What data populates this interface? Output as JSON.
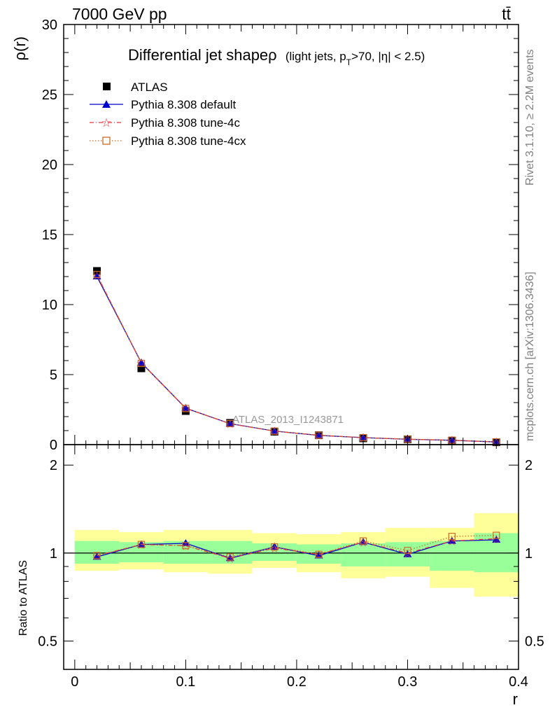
{
  "header": {
    "energy": "7000 GeV pp",
    "process": "tt̄"
  },
  "side_labels": {
    "rivet": "Rivet 3.1.10, ≥ 2.2M events",
    "mcplots": "mcplots.cern.ch [arXiv:1306.3436]"
  },
  "watermark": "ATLAS_2013_I1243871",
  "chart_data": [
    {
      "type": "line",
      "title": "Differential jet shapeρ",
      "title_cuts": "(light jets, p",
      "title_sub": "T",
      "title_cuts2": ">70, |η| < 2.5)",
      "ylabel": "ρ(r)",
      "xlim": [
        -0.01,
        0.4
      ],
      "ylim": [
        0,
        30
      ],
      "yticks": [
        "0",
        "5",
        "10",
        "15",
        "20",
        "25",
        "30"
      ],
      "x": [
        0.02,
        0.06,
        0.1,
        0.14,
        0.18,
        0.22,
        0.26,
        0.3,
        0.34,
        0.38
      ],
      "legend": [
        "ATLAS",
        "Pythia 8.308 default",
        "Pythia 8.308 tune-4c",
        "Pythia 8.308 tune-4cx"
      ],
      "series": [
        {
          "name": "ATLAS",
          "color": "#000000",
          "marker": "square",
          "values": [
            12.4,
            5.45,
            2.4,
            1.55,
            0.92,
            0.67,
            0.45,
            0.38,
            0.28,
            0.17
          ]
        },
        {
          "name": "Pythia 8.308 default",
          "color": "#0000cc",
          "marker": "triangle",
          "values": [
            12.0,
            5.85,
            2.6,
            1.5,
            0.97,
            0.66,
            0.5,
            0.38,
            0.31,
            0.19
          ]
        },
        {
          "name": "Pythia 8.308 tune-4c",
          "color": "#e8383d",
          "marker": "star",
          "values": [
            12.1,
            5.85,
            2.6,
            1.49,
            0.96,
            0.67,
            0.5,
            0.39,
            0.31,
            0.19
          ]
        },
        {
          "name": "Pythia 8.308 tune-4cx",
          "color": "#cc6a28",
          "marker": "open-square",
          "values": [
            12.15,
            5.8,
            2.58,
            1.5,
            0.97,
            0.67,
            0.5,
            0.39,
            0.32,
            0.2
          ]
        }
      ]
    },
    {
      "type": "line",
      "ylabel": "Ratio to ATLAS",
      "xlabel": "r",
      "xlim": [
        -0.01,
        0.4
      ],
      "ylim": [
        0.4,
        2.35
      ],
      "yticks": [
        "0.5",
        "1",
        "2"
      ],
      "ytick_values": [
        0.5,
        1,
        2
      ],
      "xticks": [
        "0",
        "0.1",
        "0.2",
        "0.3",
        "0.4"
      ],
      "xtick_values": [
        0,
        0.1,
        0.2,
        0.3,
        0.4
      ],
      "x": [
        0.02,
        0.06,
        0.1,
        0.14,
        0.18,
        0.22,
        0.26,
        0.3,
        0.34,
        0.38
      ],
      "bins": [
        [
          0,
          0.04
        ],
        [
          0.04,
          0.08
        ],
        [
          0.08,
          0.12
        ],
        [
          0.12,
          0.16
        ],
        [
          0.16,
          0.2
        ],
        [
          0.2,
          0.24
        ],
        [
          0.24,
          0.28
        ],
        [
          0.28,
          0.32
        ],
        [
          0.32,
          0.36
        ],
        [
          0.36,
          0.4
        ]
      ],
      "band_inner": [
        [
          0.92,
          1.1
        ],
        [
          0.93,
          1.09
        ],
        [
          0.92,
          1.1
        ],
        [
          0.92,
          1.1
        ],
        [
          0.94,
          1.08
        ],
        [
          0.92,
          1.07
        ],
        [
          0.9,
          1.08
        ],
        [
          0.9,
          1.09
        ],
        [
          0.87,
          1.1
        ],
        [
          0.86,
          1.17
        ]
      ],
      "band_outer": [
        [
          0.87,
          1.2
        ],
        [
          0.88,
          1.18
        ],
        [
          0.86,
          1.2
        ],
        [
          0.85,
          1.2
        ],
        [
          0.89,
          1.17
        ],
        [
          0.86,
          1.16
        ],
        [
          0.82,
          1.18
        ],
        [
          0.83,
          1.22
        ],
        [
          0.76,
          1.22
        ],
        [
          0.71,
          1.37
        ]
      ],
      "series": [
        {
          "name": "Pythia 8.308 default",
          "color": "#0000cc",
          "values": [
            0.97,
            1.07,
            1.08,
            0.96,
            1.05,
            0.98,
            1.09,
            0.99,
            1.1,
            1.11
          ]
        },
        {
          "name": "Pythia 8.308 tune-4c",
          "color": "#e8383d",
          "values": [
            0.98,
            1.07,
            1.06,
            0.96,
            1.04,
            0.99,
            1.09,
            1.0,
            1.1,
            1.12
          ]
        },
        {
          "name": "Pythia 8.308 tune-4cx",
          "color": "#cc6a28",
          "values": [
            0.98,
            1.07,
            1.06,
            0.97,
            1.05,
            0.99,
            1.1,
            1.02,
            1.14,
            1.15
          ]
        }
      ],
      "colors": {
        "inner": "#99ff99",
        "outer": "#ffff99"
      }
    }
  ]
}
